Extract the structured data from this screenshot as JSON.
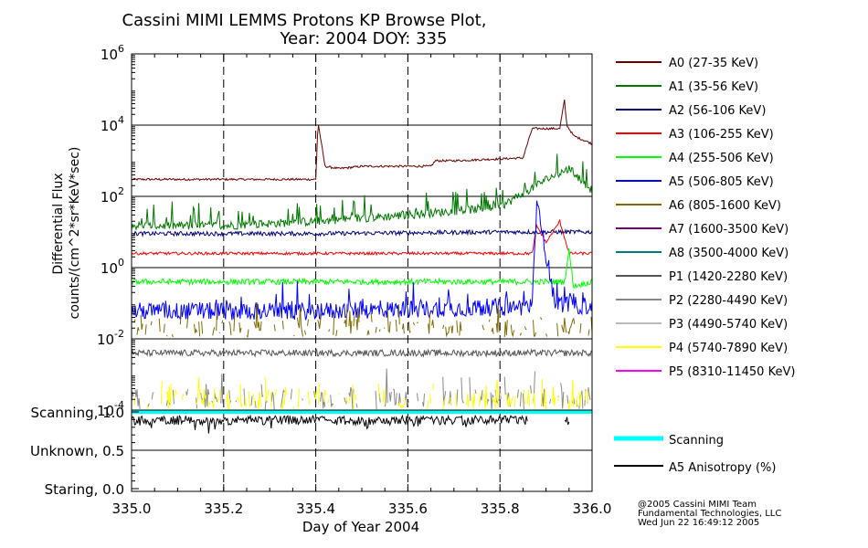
{
  "chart_data": [
    {
      "type": "line",
      "title": "Cassini MIMI LEMMS Protons KP Browse Plot,",
      "subtitle": "Year: 2004 DOY: 335",
      "ylabel": "Differential Flux",
      "ylabel2": "counts/(cm^2*sr*KeV*sec)",
      "y_scale": "log",
      "ylim": [
        0.0001,
        1000000
      ],
      "y_ticks": [
        {
          "base": "10",
          "exp": "6",
          "value": 1000000
        },
        {
          "base": "10",
          "exp": "4",
          "value": 10000
        },
        {
          "base": "10",
          "exp": "2",
          "value": 100
        },
        {
          "base": "10",
          "exp": "0",
          "value": 1
        },
        {
          "base": "10",
          "exp": "-2",
          "value": 0.01
        },
        {
          "base": "10",
          "exp": "-4",
          "value": 0.0001
        }
      ],
      "xlim": [
        335.0,
        336.0
      ],
      "grid": "dashed verticals every 0.2 day, solid horizontals every two decades",
      "legend_position": "right",
      "series": [
        {
          "name": "A0 (27-35 KeV)",
          "color": "#6b0000",
          "x": [
            335.0,
            335.35,
            335.4,
            335.405,
            335.42,
            335.45,
            335.5,
            335.65,
            335.66,
            335.7,
            335.85,
            335.87,
            335.9,
            335.93,
            335.94,
            335.945,
            335.96,
            336.0
          ],
          "y": [
            300,
            300,
            300,
            12000,
            700,
            600,
            700,
            700,
            1000,
            1000,
            1200,
            8000,
            8000,
            8000,
            50000,
            10000,
            5000,
            3000
          ]
        },
        {
          "name": "A1 (35-56 KeV)",
          "color": "#007800",
          "x": [
            335.0,
            335.2,
            335.4,
            335.6,
            335.8,
            335.9,
            335.95,
            336.0
          ],
          "y": [
            15,
            15,
            20,
            30,
            50,
            300,
            600,
            150
          ]
        },
        {
          "name": "A2 (56-106 KeV)",
          "color": "#000078",
          "x": [
            335.0,
            335.4,
            335.8,
            336.0
          ],
          "y": [
            9,
            9,
            10,
            10
          ]
        },
        {
          "name": "A3 (106-255 KeV)",
          "color": "#ff0000",
          "x": [
            335.0,
            335.4,
            335.87,
            335.88,
            335.9,
            335.93,
            335.95,
            336.0
          ],
          "y": [
            2.5,
            2.5,
            2.5,
            15,
            5,
            20,
            2.5,
            2.5
          ]
        },
        {
          "name": "A4 (255-506 KeV)",
          "color": "#00ff00",
          "x": [
            335.0,
            335.4,
            335.94,
            335.95,
            335.96,
            336.0
          ],
          "y": [
            0.4,
            0.4,
            0.4,
            3,
            0.3,
            0.4
          ]
        },
        {
          "name": "A5 (506-805 KeV)",
          "color": "#0000ff",
          "x": [
            335.0,
            335.4,
            335.87,
            335.88,
            335.92,
            336.0
          ],
          "y": [
            0.06,
            0.06,
            0.08,
            60,
            0.1,
            0.08
          ]
        },
        {
          "name": "A6 (805-1600 KeV)",
          "color": "#7f6a00",
          "x": [
            335.0,
            335.5,
            336.0
          ],
          "y": [
            0.02,
            0.02,
            0.02
          ]
        },
        {
          "name": "A7 (1600-3500 KeV)",
          "color": "#7a007a",
          "x": [],
          "y": []
        },
        {
          "name": "A8 (3500-4000 KeV)",
          "color": "#007a7a",
          "x": [],
          "y": []
        },
        {
          "name": "P1 (1420-2280 KeV)",
          "color": "#555555",
          "x": [
            335.0,
            335.5,
            336.0
          ],
          "y": [
            0.004,
            0.004,
            0.004
          ]
        },
        {
          "name": "P2 (2280-4490 KeV)",
          "color": "#888888",
          "x": [
            335.0,
            335.5,
            336.0
          ],
          "y": [
            0.0002,
            0.0002,
            0.0002
          ]
        },
        {
          "name": "P3 (4490-5740 KeV)",
          "color": "#bbbbbb",
          "x": [],
          "y": []
        },
        {
          "name": "P4 (5740-7890 KeV)",
          "color": "#ffff00",
          "x": [
            335.0,
            335.5,
            336.0
          ],
          "y": [
            0.0002,
            0.0002,
            0.0002
          ]
        },
        {
          "name": "P5 (8310-11450 KeV)",
          "color": "#ff00ff",
          "x": [],
          "y": []
        }
      ]
    },
    {
      "type": "line",
      "xlabel": "Day of Year 2004",
      "xlim": [
        335.0,
        336.0
      ],
      "x_ticks": [
        "335.0",
        "335.2",
        "335.4",
        "335.6",
        "335.8",
        "336.0"
      ],
      "y_ticks": [
        {
          "label": "Scanning, 1.0",
          "value": 1.0
        },
        {
          "label": "Unknown, 0.5",
          "value": 0.5
        },
        {
          "label": "Staring, 0.0",
          "value": 0.0
        }
      ],
      "ylim": [
        0.0,
        1.0
      ],
      "legend_position": "right",
      "series": [
        {
          "name": "Scanning",
          "color": "#00ffff",
          "x": [
            335.0,
            336.0
          ],
          "y": [
            1.0,
            1.0
          ]
        },
        {
          "name": "A5 Anisotropy (%)",
          "color": "#000000",
          "x": [
            335.0,
            335.4,
            335.86,
            335.94,
            335.95
          ],
          "y": [
            0.95,
            0.95,
            0.95,
            0.95,
            0.95
          ]
        }
      ]
    }
  ],
  "credits": {
    "line1": "@2005 Cassini MIMI Team",
    "line2": "Fundamental Technologies, LLC",
    "line3": "Wed Jun 22 16:49:12 2005"
  }
}
